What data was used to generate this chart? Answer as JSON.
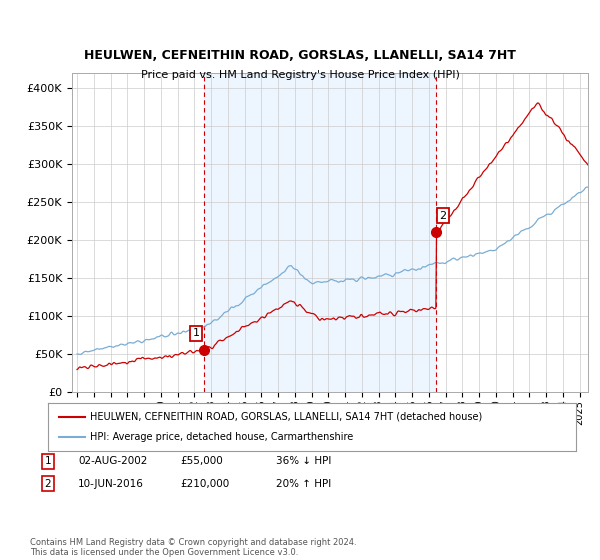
{
  "title": "HEULWEN, CEFNEITHIN ROAD, GORSLAS, LLANELLI, SA14 7HT",
  "subtitle": "Price paid vs. HM Land Registry's House Price Index (HPI)",
  "legend_label_red": "HEULWEN, CEFNEITHIN ROAD, GORSLAS, LLANELLI, SA14 7HT (detached house)",
  "legend_label_blue": "HPI: Average price, detached house, Carmarthenshire",
  "annotation1_label": "1",
  "annotation1_date": "02-AUG-2002",
  "annotation1_price": "£55,000",
  "annotation1_hpi": "36% ↓ HPI",
  "annotation1_year": 2002.6,
  "annotation1_value": 55000,
  "annotation2_label": "2",
  "annotation2_date": "10-JUN-2016",
  "annotation2_price": "£210,000",
  "annotation2_hpi": "20% ↑ HPI",
  "annotation2_year": 2016.44,
  "annotation2_value": 210000,
  "footer": "Contains HM Land Registry data © Crown copyright and database right 2024.\nThis data is licensed under the Open Government Licence v3.0.",
  "red_color": "#cc0000",
  "blue_color": "#7aadd4",
  "bg_shade_color": "#ddeeff",
  "vline_color": "#cc0000",
  "ylim": [
    0,
    420000
  ],
  "xlim_start": 1994.7,
  "xlim_end": 2025.5,
  "yticks": [
    0,
    50000,
    100000,
    150000,
    200000,
    250000,
    300000,
    350000,
    400000
  ],
  "ytick_labels": [
    "£0",
    "£50K",
    "£100K",
    "£150K",
    "£200K",
    "£250K",
    "£300K",
    "£350K",
    "£400K"
  ],
  "xtick_years": [
    1995,
    1996,
    1997,
    1998,
    1999,
    2000,
    2001,
    2002,
    2003,
    2004,
    2005,
    2006,
    2007,
    2008,
    2009,
    2010,
    2011,
    2012,
    2013,
    2014,
    2015,
    2016,
    2017,
    2018,
    2019,
    2020,
    2021,
    2022,
    2023,
    2024,
    2025
  ]
}
